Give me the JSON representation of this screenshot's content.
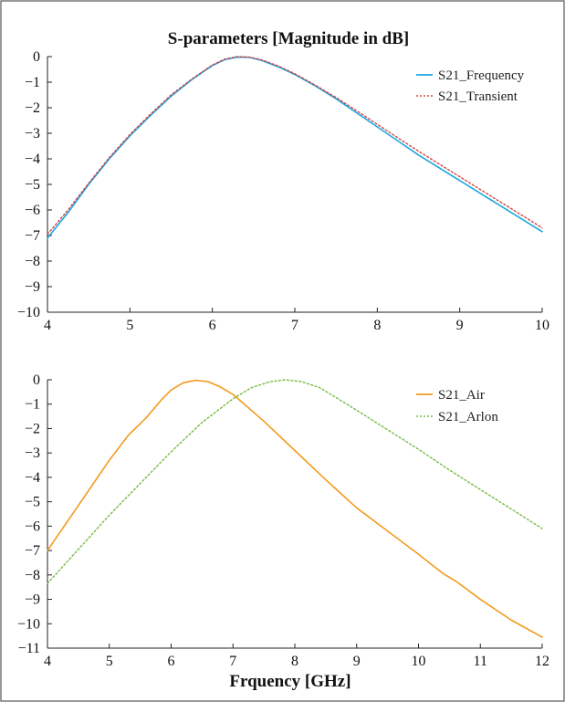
{
  "chart_data": [
    {
      "type": "line",
      "title": "S-parameters [Magnitude in dB]",
      "xlabel": "",
      "ylabel": "",
      "xlim": [
        4,
        10
      ],
      "ylim": [
        -10,
        0
      ],
      "xticks": [
        4,
        5,
        6,
        7,
        8,
        9,
        10
      ],
      "yticks": [
        0,
        -1,
        -2,
        -3,
        -4,
        -5,
        -6,
        -7,
        -8,
        -9,
        -10
      ],
      "grid": false,
      "legend_position": "top-right",
      "series": [
        {
          "name": "S21_Frequency",
          "color": "#1aa7e0",
          "line_style": "solid",
          "x": [
            4.0,
            4.25,
            4.5,
            4.75,
            5.0,
            5.25,
            5.5,
            5.75,
            6.0,
            6.15,
            6.3,
            6.45,
            6.6,
            6.8,
            7.0,
            7.25,
            7.5,
            7.75,
            8.0,
            8.25,
            8.5,
            8.75,
            9.0,
            9.25,
            9.5,
            9.75,
            10.0
          ],
          "y": [
            -7.1,
            -6.1,
            -5.0,
            -4.0,
            -3.1,
            -2.3,
            -1.55,
            -0.9,
            -0.35,
            -0.12,
            -0.02,
            -0.03,
            -0.15,
            -0.4,
            -0.7,
            -1.15,
            -1.65,
            -2.2,
            -2.75,
            -3.3,
            -3.85,
            -4.35,
            -4.85,
            -5.35,
            -5.85,
            -6.35,
            -6.85
          ]
        },
        {
          "name": "S21_Transient",
          "color": "#d24545",
          "line_style": "dotted",
          "x": [
            4.0,
            4.25,
            4.5,
            4.75,
            5.0,
            5.25,
            5.5,
            5.75,
            6.0,
            6.15,
            6.3,
            6.45,
            6.6,
            6.8,
            7.0,
            7.25,
            7.5,
            7.75,
            8.0,
            8.25,
            8.5,
            8.75,
            9.0,
            9.25,
            9.5,
            9.75,
            10.0
          ],
          "y": [
            -6.95,
            -6.0,
            -4.95,
            -3.95,
            -3.05,
            -2.25,
            -1.5,
            -0.88,
            -0.33,
            -0.1,
            0.0,
            -0.02,
            -0.13,
            -0.37,
            -0.67,
            -1.12,
            -1.6,
            -2.12,
            -2.65,
            -3.18,
            -3.7,
            -4.2,
            -4.7,
            -5.2,
            -5.7,
            -6.2,
            -6.7
          ]
        }
      ]
    },
    {
      "type": "line",
      "title": "",
      "xlabel": "Frquency [GHz]",
      "ylabel": "",
      "xlim": [
        4,
        12
      ],
      "ylim": [
        -11,
        0
      ],
      "xticks": [
        4,
        5,
        6,
        7,
        8,
        9,
        10,
        11,
        12
      ],
      "yticks": [
        0,
        -1,
        -2,
        -3,
        -4,
        -5,
        -6,
        -7,
        -8,
        -9,
        -10,
        -11
      ],
      "grid": false,
      "legend_position": "top-right",
      "series": [
        {
          "name": "S21_Air",
          "color": "#f39a1e",
          "line_style": "solid",
          "x": [
            4.0,
            4.5,
            5.0,
            5.3,
            5.6,
            5.85,
            6.0,
            6.2,
            6.4,
            6.6,
            6.8,
            7.0,
            7.5,
            8.0,
            8.5,
            9.0,
            9.5,
            10.0,
            10.4,
            10.6,
            11.0,
            11.5,
            12.0
          ],
          "y": [
            -7.0,
            -5.15,
            -3.3,
            -2.3,
            -1.55,
            -0.8,
            -0.42,
            -0.12,
            -0.02,
            -0.08,
            -0.3,
            -0.6,
            -1.7,
            -2.9,
            -4.1,
            -5.25,
            -6.2,
            -7.15,
            -7.95,
            -8.25,
            -9.0,
            -9.85,
            -10.55
          ]
        },
        {
          "name": "S21_Arlon",
          "color": "#77bb44",
          "line_style": "dotted",
          "x": [
            4.0,
            4.5,
            5.0,
            5.5,
            6.0,
            6.5,
            7.0,
            7.3,
            7.6,
            7.85,
            8.1,
            8.4,
            8.7,
            9.0,
            9.5,
            10.0,
            10.5,
            11.0,
            11.5,
            12.0
          ],
          "y": [
            -8.35,
            -6.95,
            -5.55,
            -4.25,
            -2.95,
            -1.75,
            -0.78,
            -0.32,
            -0.08,
            0.0,
            -0.07,
            -0.32,
            -0.78,
            -1.25,
            -2.05,
            -2.85,
            -3.7,
            -4.5,
            -5.3,
            -6.1
          ]
        }
      ]
    }
  ]
}
